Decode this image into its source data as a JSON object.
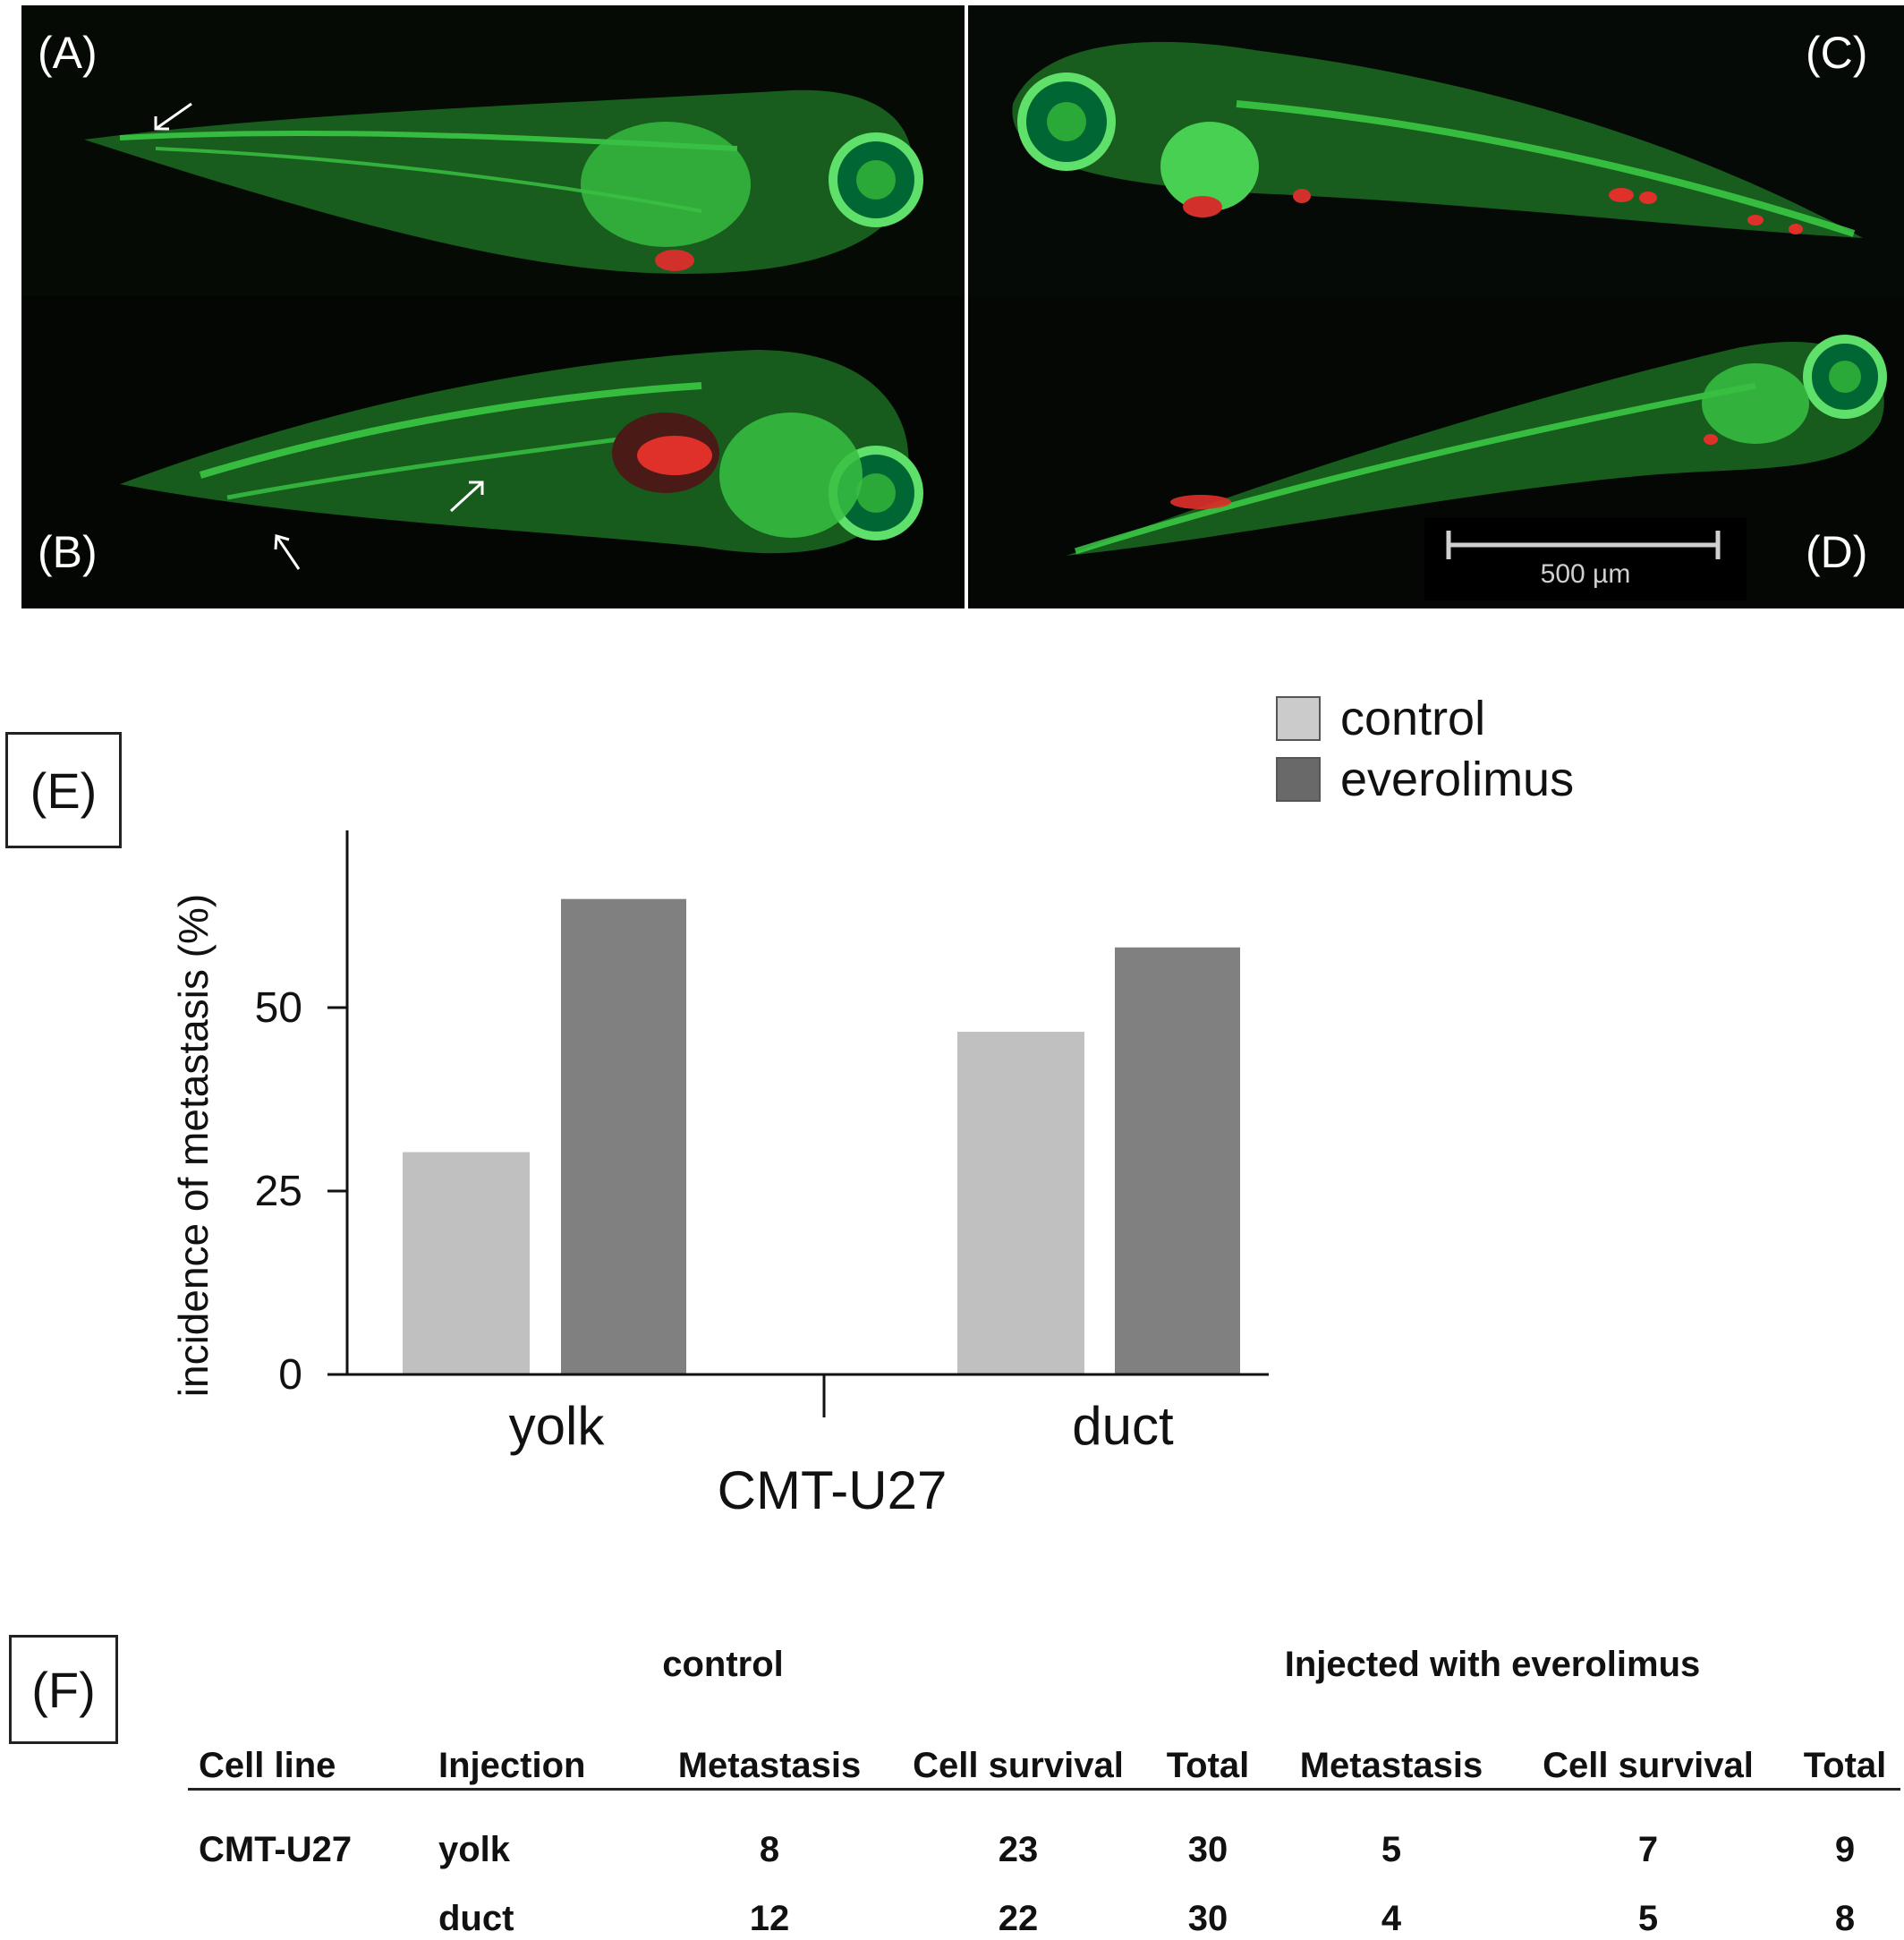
{
  "panels": {
    "a": {
      "label": "(A)"
    },
    "b": {
      "label": "(B)"
    },
    "c": {
      "label": "(C)"
    },
    "d": {
      "label": "(D)"
    },
    "scale_bar": "500 µm"
  },
  "panel_e_label": "(E)",
  "panel_f_label": "(F)",
  "legend": [
    {
      "label": "control",
      "color": "#c0c0c0"
    },
    {
      "label": "everolimus",
      "color": "#808080"
    }
  ],
  "chart_data": {
    "type": "bar",
    "categories": [
      "yolk",
      "duct"
    ],
    "group_label": "CMT-U27",
    "series": [
      {
        "name": "control",
        "color": "#c0c0c0",
        "values": [
          30.3,
          46.7
        ]
      },
      {
        "name": "everolimus",
        "color": "#808080",
        "values": [
          64.8,
          58.2
        ]
      }
    ],
    "ylabel": "incidence of metastasis (%)",
    "yticks": [
      0,
      25,
      50
    ],
    "ylim": [
      0,
      73
    ],
    "grid": false,
    "legend_position": "top-right"
  },
  "table": {
    "group_headers": {
      "control": "control",
      "everolimus": "Injected with everolimus"
    },
    "columns": [
      "Cell line",
      "Injection",
      "Metastasis",
      "Cell survival",
      "Total",
      "Metastasis",
      "Cell survival",
      "Total"
    ],
    "rows": [
      [
        "CMT-U27",
        "yolk",
        "8",
        "23",
        "30",
        "5",
        "7",
        "9"
      ],
      [
        "",
        "duct",
        "12",
        "22",
        "30",
        "4",
        "5",
        "8"
      ]
    ]
  }
}
